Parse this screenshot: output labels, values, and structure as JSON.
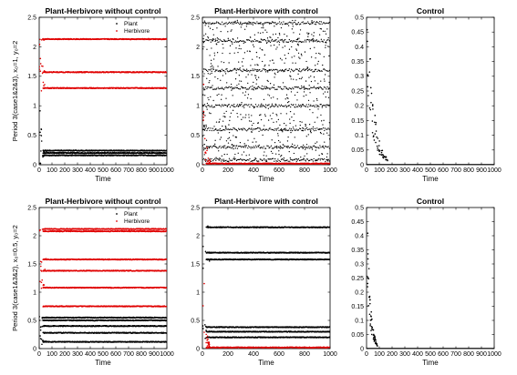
{
  "chart_data": [
    {
      "type": "scatter",
      "title": "Plant-Herbivore without control",
      "xlabel": "Time",
      "ylabel": "Period 3(case1&2&3), x₀=1, y₀=2",
      "xlim": [
        0,
        1000
      ],
      "ylim": [
        0,
        2.5
      ],
      "xticks": [
        "0",
        "100",
        "200",
        "300",
        "400",
        "500",
        "600",
        "700",
        "800",
        "900",
        "1000"
      ],
      "yticks": [
        "0",
        "0.5",
        "1",
        "1.5",
        "2",
        "2.5"
      ],
      "legend": {
        "placement": "top-right",
        "entries": [
          "Plant",
          "Herbivore"
        ]
      },
      "series": [
        {
          "name": "Plant",
          "color": "#000000",
          "start": 1.0,
          "levels": [
            0.16,
            0.2,
            0.24
          ]
        },
        {
          "name": "Herbivore",
          "color": "#e00000",
          "start": 2.0,
          "levels": [
            1.3,
            1.57,
            2.13
          ]
        }
      ]
    },
    {
      "type": "scatter",
      "title": "Plant-Herbivore with control",
      "xlabel": "Time",
      "ylabel": "",
      "xlim": [
        0,
        1000
      ],
      "ylim": [
        0,
        2.5
      ],
      "xticks": [
        "0",
        "200",
        "400",
        "600",
        "800",
        "1000"
      ],
      "yticks": [
        "0",
        "0.5",
        "1",
        "1.5",
        "2",
        "2.5"
      ],
      "series": [
        {
          "name": "",
          "color": "#000000",
          "start": 1.0,
          "band": [
            0.05,
            2.45
          ],
          "levels": [
            0.08,
            0.3,
            0.6,
            1.0,
            1.3,
            1.6,
            2.1,
            2.4
          ]
        },
        {
          "name": "",
          "color": "#e00000",
          "start": 2.0,
          "levels": [
            0.02
          ]
        }
      ]
    },
    {
      "type": "scatter",
      "title": "Control",
      "xlabel": "Time",
      "ylabel": "",
      "xlim": [
        0,
        1000
      ],
      "ylim": [
        0,
        0.5
      ],
      "xticks": [
        "0",
        "100",
        "200",
        "300",
        "400",
        "500",
        "600",
        "700",
        "800",
        "900",
        "1000"
      ],
      "yticks": [
        "0",
        "0.05",
        "0.1",
        "0.15",
        "0.2",
        "0.25",
        "0.3",
        "0.35",
        "0.4",
        "0.45",
        "0.5"
      ],
      "series": [
        {
          "name": "",
          "color": "#000000",
          "start": 0.48,
          "decay_until": 160,
          "levels": [
            0.0
          ]
        }
      ]
    },
    {
      "type": "scatter",
      "title": "Plant-Herbivore without control",
      "xlabel": "Time",
      "ylabel": "Period 3(case1&3&2), x₀=0.5, y₀=2",
      "xlim": [
        0,
        1000
      ],
      "ylim": [
        0,
        2.5
      ],
      "xticks": [
        "0",
        "100",
        "200",
        "300",
        "400",
        "500",
        "600",
        "700",
        "800",
        "900",
        "1000"
      ],
      "yticks": [
        "0",
        "0.5",
        "1",
        "1.5",
        "2",
        "2.5"
      ],
      "legend": {
        "placement": "top-right",
        "entries": [
          "Plant",
          "Herbivore"
        ]
      },
      "series": [
        {
          "name": "Plant",
          "color": "#000000",
          "start": 0.5,
          "levels": [
            0.12,
            0.28,
            0.4,
            0.5,
            0.55
          ]
        },
        {
          "name": "Herbivore",
          "color": "#e00000",
          "start": 2.0,
          "levels": [
            0.75,
            1.08,
            1.38,
            1.58,
            2.08,
            2.12
          ]
        }
      ]
    },
    {
      "type": "scatter",
      "title": "Plant-Herbivore with control",
      "xlabel": "Time",
      "ylabel": "",
      "xlim": [
        0,
        1000
      ],
      "ylim": [
        0,
        2.5
      ],
      "xticks": [
        "0",
        "200",
        "400",
        "600",
        "800",
        "1000"
      ],
      "yticks": [
        "0",
        "0.5",
        "1",
        "1.5",
        "2",
        "2.5"
      ],
      "series": [
        {
          "name": "",
          "color": "#000000",
          "start": 0.5,
          "levels": [
            0.2,
            0.3,
            0.38,
            1.58,
            1.7,
            2.15
          ]
        },
        {
          "name": "",
          "color": "#e00000",
          "start": 2.0,
          "levels": [
            0.02
          ]
        }
      ]
    },
    {
      "type": "scatter",
      "title": "Control",
      "xlabel": "Time",
      "ylabel": "",
      "xlim": [
        0,
        1000
      ],
      "ylim": [
        0,
        0.5
      ],
      "xticks": [
        "0",
        "100",
        "200",
        "300",
        "400",
        "500",
        "600",
        "700",
        "800",
        "900",
        "1000"
      ],
      "yticks": [
        "0",
        "0.05",
        "0.1",
        "0.15",
        "0.2",
        "0.25",
        "0.3",
        "0.35",
        "0.4",
        "0.45",
        "0.5"
      ],
      "series": [
        {
          "name": "",
          "color": "#000000",
          "start": 0.45,
          "decay_until": 80,
          "levels": [
            0.0
          ]
        }
      ]
    }
  ]
}
